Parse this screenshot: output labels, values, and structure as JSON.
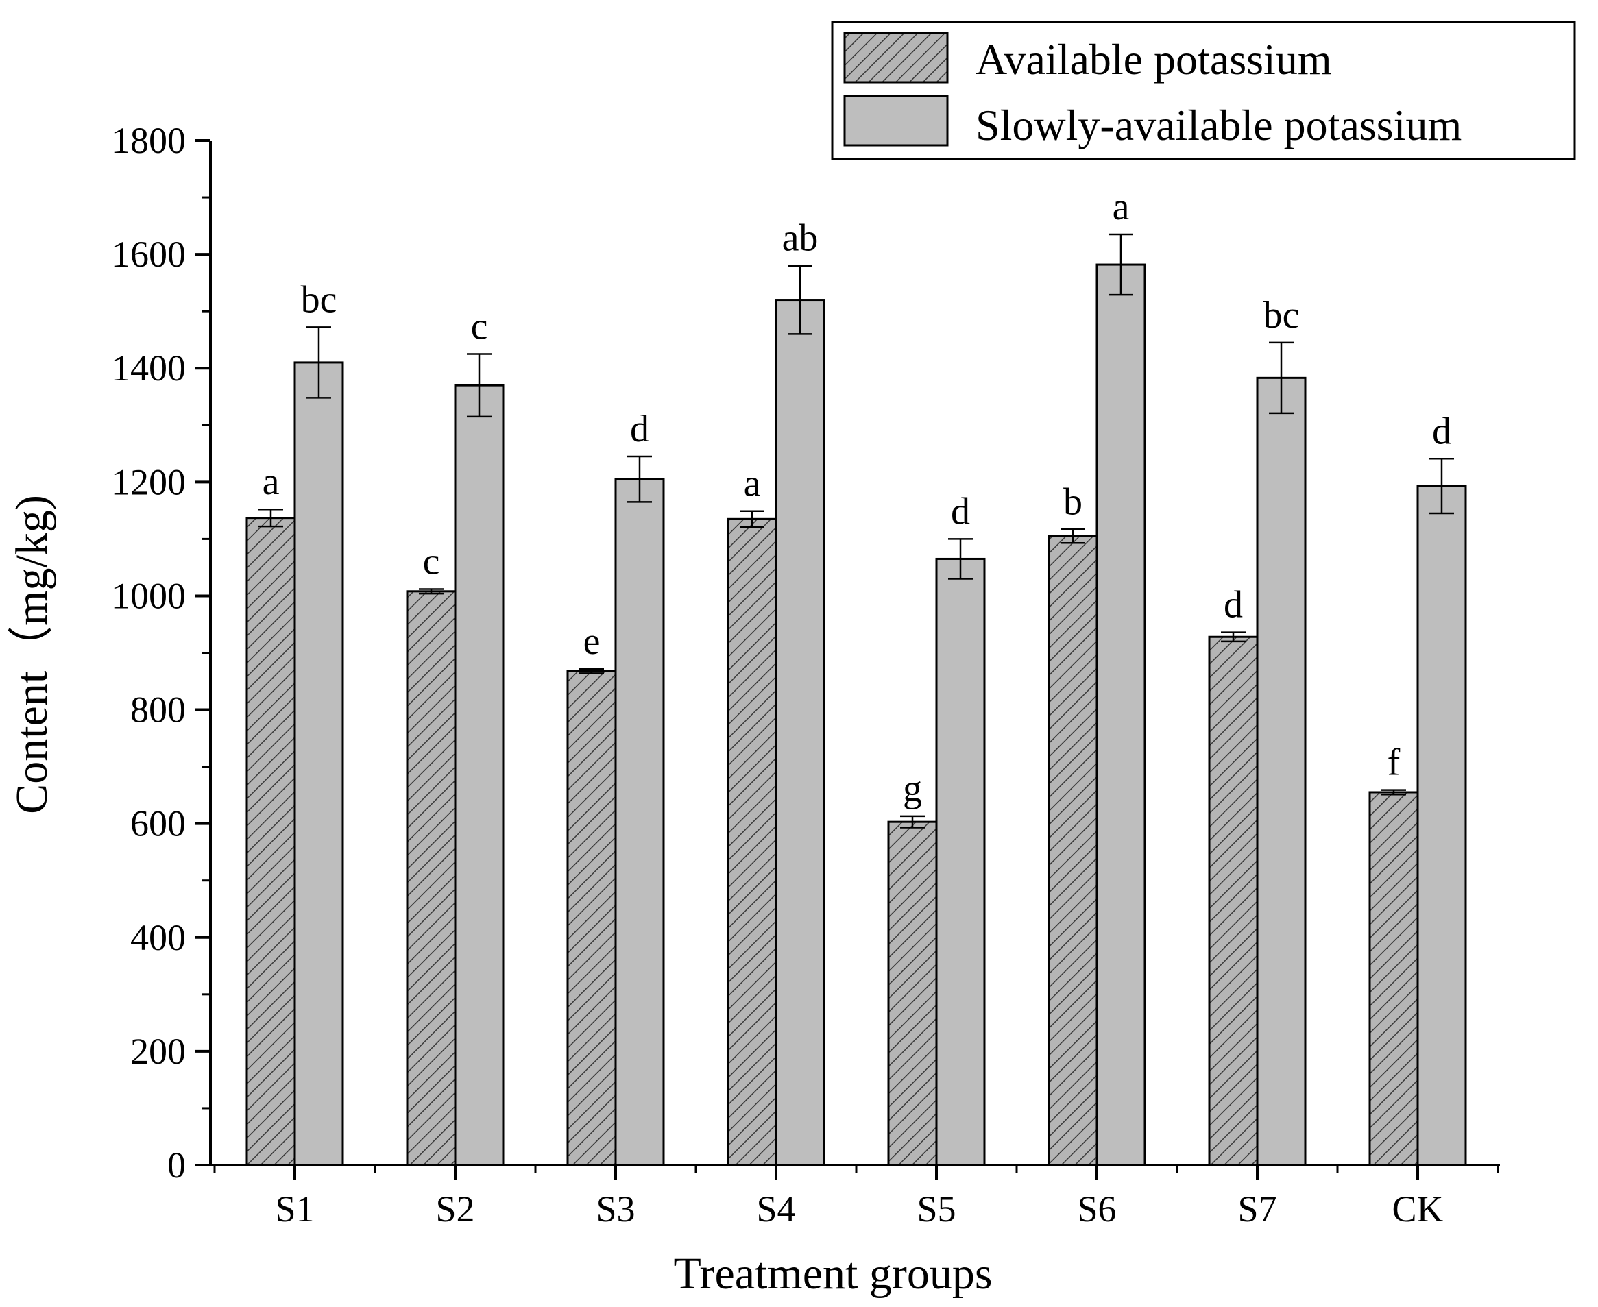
{
  "chart_data": {
    "type": "bar",
    "title": "",
    "xlabel": "Treatment groups",
    "ylabel": "Content（mg/kg)",
    "ylim": [
      0,
      1800
    ],
    "yticks": [
      0,
      200,
      400,
      600,
      800,
      1000,
      1200,
      1400,
      1600,
      1800
    ],
    "categories": [
      "S1",
      "S2",
      "S3",
      "S4",
      "S5",
      "S6",
      "S7",
      "CK"
    ],
    "legend_position": "top-right",
    "series": [
      {
        "name": "Available potassium",
        "fill": "#b0b0b0",
        "pattern": "hatched",
        "values": [
          1137,
          1008,
          868,
          1135,
          603,
          1105,
          928,
          655
        ],
        "errors": [
          15,
          4,
          4,
          14,
          10,
          12,
          8,
          4
        ],
        "letters": [
          "a",
          "c",
          "e",
          "a",
          "g",
          "b",
          "d",
          "f"
        ]
      },
      {
        "name": "Slowly-available potassium",
        "fill": "#bebebe",
        "pattern": "solid",
        "values": [
          1410,
          1370,
          1205,
          1520,
          1065,
          1582,
          1383,
          1193
        ],
        "errors": [
          62,
          55,
          40,
          60,
          35,
          53,
          62,
          48
        ],
        "letters": [
          "bc",
          "c",
          "d",
          "ab",
          "d",
          "a",
          "bc",
          "d"
        ]
      }
    ]
  }
}
